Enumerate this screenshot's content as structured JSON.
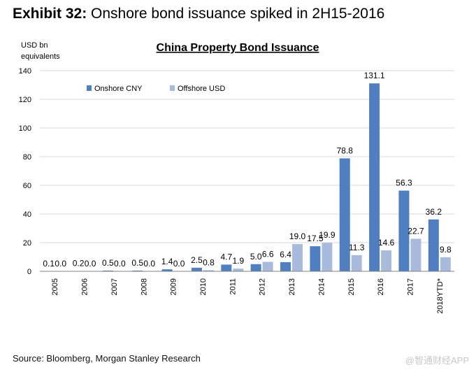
{
  "header": {
    "exhibit_label": "Exhibit 32:",
    "headline": "Onshore bond issuance spiked in 2H15-2016"
  },
  "footer": {
    "source": "Source: Bloomberg, Morgan Stanley Research",
    "watermark": "@智通财经APP"
  },
  "chart_data": {
    "type": "bar",
    "title": "China Property Bond Issuance",
    "ylabel_lines": [
      "USD bn",
      "equivalents"
    ],
    "xlabel": "",
    "ylim": [
      0,
      140
    ],
    "yticks": [
      0,
      20,
      40,
      60,
      80,
      100,
      120,
      140
    ],
    "grid": true,
    "legend_position": "top-left",
    "categories": [
      "2005",
      "2006",
      "2007",
      "2008",
      "2009",
      "2010",
      "2011",
      "2012",
      "2013",
      "2014",
      "2015",
      "2016",
      "2017",
      "2018YTD*"
    ],
    "series": [
      {
        "name": "Onshore CNY",
        "color": "#4f7fc1",
        "values": [
          0.1,
          0.2,
          0.5,
          0.5,
          1.4,
          2.5,
          4.7,
          5.0,
          6.4,
          17.5,
          78.8,
          131.1,
          56.3,
          36.2
        ]
      },
      {
        "name": "Offshore USD",
        "color": "#a9bbdc",
        "values": [
          0.0,
          0.0,
          0.0,
          0.0,
          0.0,
          0.8,
          1.9,
          6.6,
          19.0,
          19.9,
          11.3,
          14.6,
          22.7,
          9.8
        ]
      }
    ],
    "data_labels": [
      [
        "0.1",
        "0.2",
        "0.5",
        "0.5",
        "1.4",
        "2.5",
        "4.7",
        "5.0",
        "6.4",
        "17.5",
        "78.8",
        "131.1",
        "56.3",
        "36.2"
      ],
      [
        "0.0",
        "0.0",
        "0.0",
        "0.0",
        "0.0",
        "0.8",
        "1.9",
        "6.6",
        "19.0",
        "19.9",
        "11.3",
        "14.6",
        "22.7",
        "9.8"
      ]
    ]
  }
}
